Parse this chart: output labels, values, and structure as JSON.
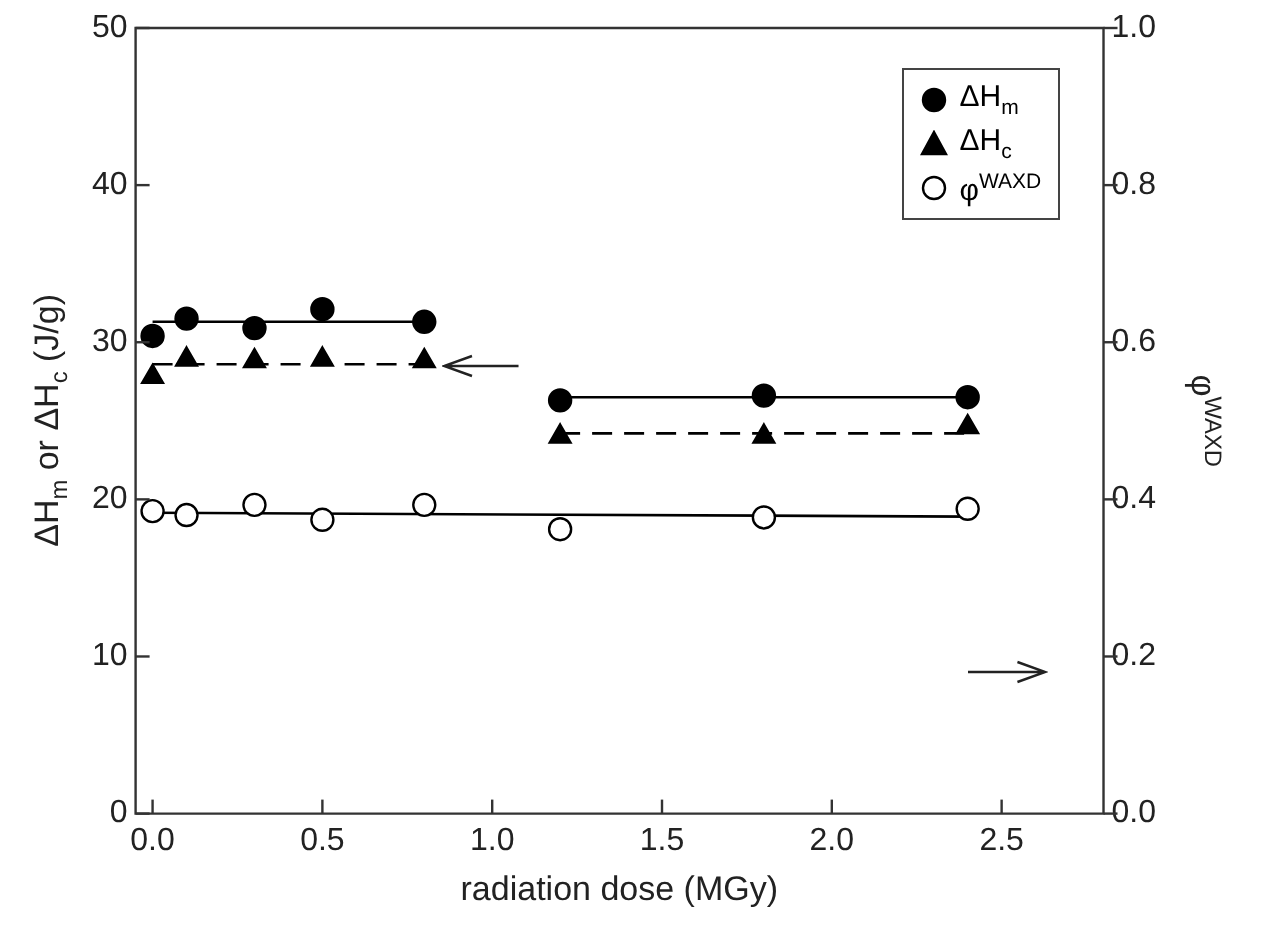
{
  "chart_data": {
    "type": "scatter",
    "xlabel": "radiation dose (MGy)",
    "ylabel": "ΔH$_{m}$ or ΔH$_{c}$ (J/g)",
    "y2label": "φ$^{WAXD}$",
    "xlim": [
      -0.05,
      2.8
    ],
    "xticks": [
      {
        "value": 0,
        "label": "0.0"
      },
      0.5,
      {
        "value": 1,
        "label": "1.0"
      },
      1.5,
      {
        "value": 2,
        "label": "2.0"
      },
      2.5
    ],
    "ylim": [
      0,
      50
    ],
    "yticks": [
      0,
      10,
      20,
      30,
      40,
      50
    ],
    "y2lim": [
      0,
      1
    ],
    "y2ticks": [
      {
        "value": 0,
        "label": "0.0"
      },
      0.2,
      0.4,
      0.6,
      0.8,
      {
        "value": 1,
        "label": "1.0"
      }
    ],
    "grid": false,
    "legend": "top right",
    "series": [
      {
        "name": "ΔH$_{m}$",
        "marker": "circle",
        "color": "#000000",
        "x": [
          0,
          0.1,
          0.3,
          0.5,
          0.8,
          1.2,
          1.8,
          2.4
        ],
        "values": [
          30.4,
          31.5,
          30.9,
          32.1,
          31.3,
          26.3,
          26.6,
          26.5
        ]
      },
      {
        "name": "ΔH$_{c}$",
        "marker": "triangle",
        "color": "#000000",
        "x": [
          0,
          0.1,
          0.3,
          0.5,
          0.8,
          1.2,
          1.8,
          2.4
        ],
        "values": [
          27.8,
          28.9,
          28.8,
          28.9,
          28.8,
          24.0,
          24.0,
          24.6
        ]
      },
      {
        "name": "φ$^{WAXD}$",
        "marker": "circle",
        "axis": "y2",
        "color": "#000000",
        "x": [
          0,
          0.1,
          0.3,
          0.5,
          0.8,
          1.2,
          1.8,
          2.4
        ],
        "values": [
          0.385,
          0.38,
          0.393,
          0.374,
          0.393,
          0.362,
          0.377,
          0.388
        ]
      },
      {
        "type": "line",
        "line_style": "solid",
        "marker": "none",
        "color": "#000000",
        "x": [
          0,
          0.8
        ],
        "values": [
          31.3,
          31.3
        ]
      },
      {
        "type": "line",
        "line_style": "solid",
        "marker": "none",
        "color": "#000000",
        "x": [
          1.2,
          2.4
        ],
        "values": [
          26.5,
          26.5
        ]
      },
      {
        "type": "line",
        "line_style": "dashed",
        "marker": "none",
        "color": "#000000",
        "x": [
          0,
          0.8
        ],
        "values": [
          28.6,
          28.6
        ]
      },
      {
        "type": "line",
        "line_style": "dashed",
        "marker": "none",
        "color": "#000000",
        "x": [
          1.2,
          2.4
        ],
        "values": [
          24.2,
          24.2
        ]
      },
      {
        "type": "line",
        "line_style": "solid",
        "marker": "none",
        "axis": "y2",
        "color": "#000000",
        "x": [
          0,
          2.4
        ],
        "values": [
          0.383,
          0.378
        ]
      }
    ]
  }
}
